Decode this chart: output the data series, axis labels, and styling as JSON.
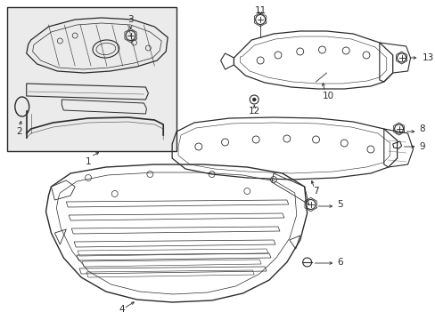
{
  "bg": "#ffffff",
  "lc": "#2a2a2a",
  "box_bg": "#ebebeb",
  "fs": 7.5
}
